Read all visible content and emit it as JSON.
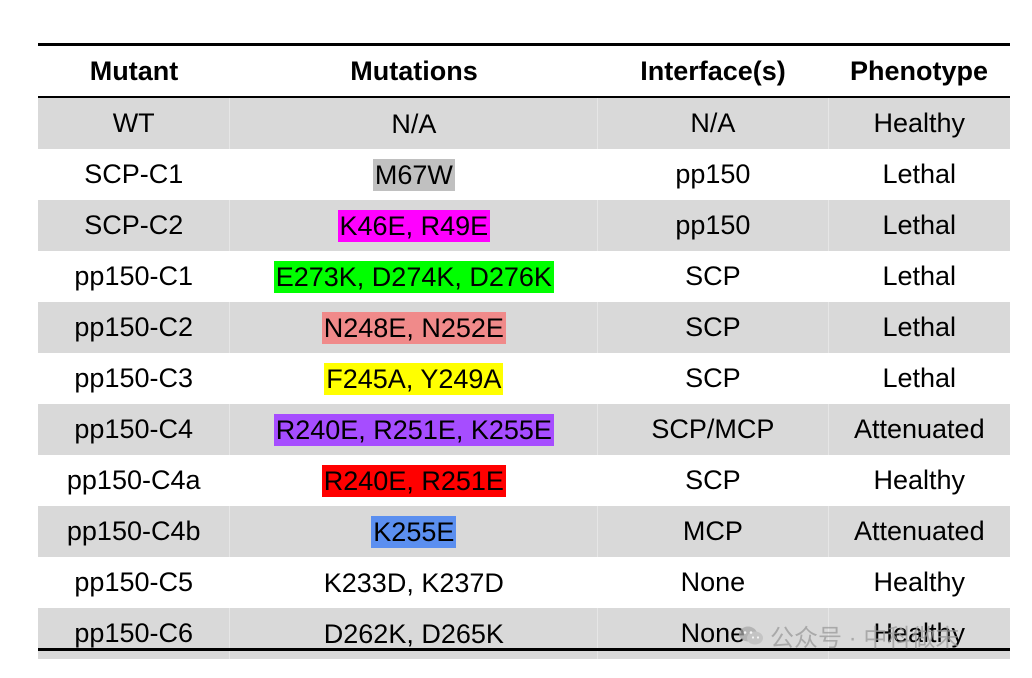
{
  "table": {
    "headers": [
      "Mutant",
      "Mutations",
      "Interface(s)",
      "Phenotype"
    ],
    "rows": [
      {
        "mutant": "WT",
        "mutations": "N/A",
        "interfaces": "N/A",
        "phenotype": "Healthy",
        "highlight": ""
      },
      {
        "mutant": "SCP-C1",
        "mutations": "M67W",
        "interfaces": "pp150",
        "phenotype": "Lethal",
        "highlight": "#c0c0c0"
      },
      {
        "mutant": "SCP-C2",
        "mutations": "K46E, R49E",
        "interfaces": "pp150",
        "phenotype": "Lethal",
        "highlight": "#ff00ff"
      },
      {
        "mutant": "pp150-C1",
        "mutations": "E273K, D274K, D276K",
        "interfaces": "SCP",
        "phenotype": "Lethal",
        "highlight": "#00ff00"
      },
      {
        "mutant": "pp150-C2",
        "mutations": "N248E, N252E",
        "interfaces": "SCP",
        "phenotype": "Lethal",
        "highlight": "#f08a8a"
      },
      {
        "mutant": "pp150-C3",
        "mutations": "F245A, Y249A",
        "interfaces": "SCP",
        "phenotype": "Lethal",
        "highlight": "#ffff00"
      },
      {
        "mutant": "pp150-C4",
        "mutations": "R240E, R251E, K255E",
        "interfaces": "SCP/MCP",
        "phenotype": "Attenuated",
        "highlight": "#a64dff"
      },
      {
        "mutant": "pp150-C4a",
        "mutations": "R240E, R251E",
        "interfaces": "SCP",
        "phenotype": "Healthy",
        "highlight": "#ff0000"
      },
      {
        "mutant": "pp150-C4b",
        "mutations": "K255E",
        "interfaces": "MCP",
        "phenotype": "Attenuated",
        "highlight": "#5b8ff0"
      },
      {
        "mutant": "pp150-C5",
        "mutations": "K233D, K237D",
        "interfaces": "None",
        "phenotype": "Healthy",
        "highlight": ""
      },
      {
        "mutant": "pp150-C6",
        "mutations": "D262K, D265K",
        "interfaces": "None",
        "phenotype": "Healthy",
        "highlight": ""
      }
    ]
  },
  "watermark": {
    "text": "公众号 · 中科做末",
    "icon": "wechat-icon"
  }
}
